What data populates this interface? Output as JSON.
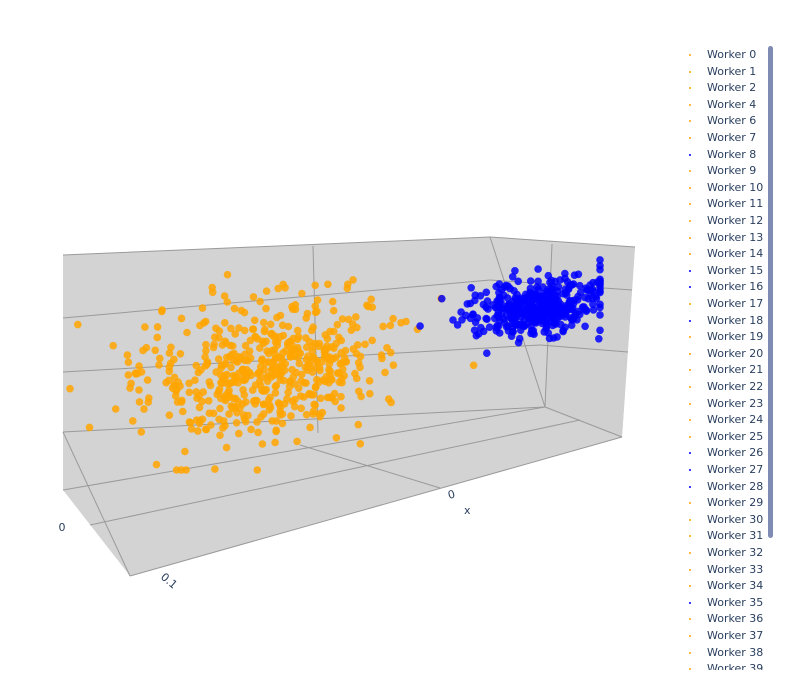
{
  "chart_data": {
    "type": "scatter3d",
    "title": "",
    "colors": {
      "orange": "#ffa500",
      "blue": "#0000ff"
    },
    "scene": {
      "background": "#d3d3d3",
      "grid": true,
      "axes": [
        {
          "name": "x",
          "label": "x",
          "ticks": [
            "0"
          ]
        },
        {
          "name": "y",
          "label": "",
          "ticks": [
            "0.1",
            "0"
          ]
        }
      ]
    },
    "clusters": [
      {
        "color": "orange",
        "center": [
          -0.08,
          0.02,
          0.0
        ],
        "spread": [
          0.05,
          0.02,
          0.03
        ],
        "count": 540
      },
      {
        "color": "blue",
        "center": [
          0.12,
          -0.01,
          0.02
        ],
        "spread": [
          0.025,
          0.01,
          0.012
        ],
        "count": 400
      }
    ],
    "series": [
      {
        "name": "Worker 0",
        "color": "orange"
      },
      {
        "name": "Worker 1",
        "color": "orange"
      },
      {
        "name": "Worker 2",
        "color": "orange"
      },
      {
        "name": "Worker 4",
        "color": "orange"
      },
      {
        "name": "Worker 6",
        "color": "orange"
      },
      {
        "name": "Worker 7",
        "color": "orange"
      },
      {
        "name": "Worker 8",
        "color": "blue"
      },
      {
        "name": "Worker 9",
        "color": "orange"
      },
      {
        "name": "Worker 10",
        "color": "orange"
      },
      {
        "name": "Worker 11",
        "color": "orange"
      },
      {
        "name": "Worker 12",
        "color": "orange"
      },
      {
        "name": "Worker 13",
        "color": "orange"
      },
      {
        "name": "Worker 14",
        "color": "orange"
      },
      {
        "name": "Worker 15",
        "color": "blue"
      },
      {
        "name": "Worker 16",
        "color": "blue"
      },
      {
        "name": "Worker 17",
        "color": "orange"
      },
      {
        "name": "Worker 18",
        "color": "blue"
      },
      {
        "name": "Worker 19",
        "color": "orange"
      },
      {
        "name": "Worker 20",
        "color": "orange"
      },
      {
        "name": "Worker 21",
        "color": "orange"
      },
      {
        "name": "Worker 22",
        "color": "orange"
      },
      {
        "name": "Worker 23",
        "color": "orange"
      },
      {
        "name": "Worker 24",
        "color": "orange"
      },
      {
        "name": "Worker 25",
        "color": "orange"
      },
      {
        "name": "Worker 26",
        "color": "blue"
      },
      {
        "name": "Worker 27",
        "color": "blue"
      },
      {
        "name": "Worker 28",
        "color": "blue"
      },
      {
        "name": "Worker 29",
        "color": "orange"
      },
      {
        "name": "Worker 30",
        "color": "orange"
      },
      {
        "name": "Worker 31",
        "color": "orange"
      },
      {
        "name": "Worker 32",
        "color": "orange"
      },
      {
        "name": "Worker 33",
        "color": "orange"
      },
      {
        "name": "Worker 34",
        "color": "orange"
      },
      {
        "name": "Worker 35",
        "color": "blue"
      },
      {
        "name": "Worker 36",
        "color": "orange"
      },
      {
        "name": "Worker 37",
        "color": "orange"
      },
      {
        "name": "Worker 38",
        "color": "orange"
      },
      {
        "name": "Worker 39",
        "color": "orange"
      }
    ]
  }
}
